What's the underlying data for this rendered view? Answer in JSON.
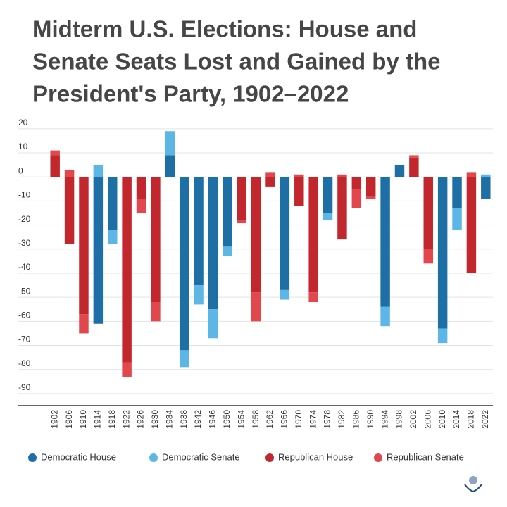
{
  "chart_data": {
    "type": "stacked_bar",
    "title": [
      "Midterm U.S. Elections: House and",
      "Senate Seats Lost and Gained by the",
      "President's Party, 1902–2022"
    ],
    "categories": [
      "1902",
      "1906",
      "1910",
      "1914",
      "1918",
      "1922",
      "1926",
      "1930",
      "1934",
      "1938",
      "1942",
      "1946",
      "1950",
      "1954",
      "1958",
      "1962",
      "1966",
      "1970",
      "1974",
      "1978",
      "1982",
      "1986",
      "1990",
      "1994",
      "1998",
      "2002",
      "2006",
      "2010",
      "2014",
      "2018",
      "2022"
    ],
    "series": [
      {
        "name": "Democratic House",
        "color": "#1d6fa5",
        "values": [
          null,
          null,
          null,
          -61,
          -22,
          null,
          null,
          null,
          9,
          -72,
          -45,
          -55,
          -29,
          null,
          null,
          null,
          -47,
          null,
          null,
          -15,
          null,
          null,
          null,
          -54,
          5,
          null,
          null,
          -63,
          -13,
          null,
          -9
        ]
      },
      {
        "name": "Democratic Senate",
        "color": "#5cb6e6",
        "values": [
          null,
          null,
          null,
          5,
          -6,
          null,
          null,
          null,
          10,
          -7,
          -8,
          -12,
          -4,
          null,
          null,
          null,
          -4,
          null,
          null,
          -3,
          null,
          null,
          null,
          -8,
          0,
          null,
          null,
          -6,
          -9,
          null,
          1
        ]
      },
      {
        "name": "Republican House",
        "color": "#c1272d",
        "values": [
          9,
          -28,
          -57,
          null,
          null,
          -77,
          -9,
          -52,
          null,
          null,
          null,
          null,
          null,
          -18,
          -48,
          -4,
          null,
          -12,
          -48,
          null,
          -26,
          -5,
          -8,
          null,
          null,
          8,
          -30,
          null,
          null,
          -40,
          null
        ]
      },
      {
        "name": "Republican Senate",
        "color": "#e1474d",
        "values": [
          2,
          3,
          -8,
          null,
          null,
          -6,
          -6,
          -8,
          null,
          null,
          null,
          null,
          null,
          -1,
          -12,
          2,
          null,
          1,
          -4,
          null,
          1,
          -8,
          -1,
          null,
          null,
          1,
          -6,
          null,
          null,
          2,
          null
        ]
      }
    ],
    "ylim": [
      -95,
      22
    ],
    "yticks": [
      20,
      10,
      0,
      -10,
      -20,
      -30,
      -40,
      -50,
      -60,
      -70,
      -80,
      -90
    ],
    "grid": true
  }
}
